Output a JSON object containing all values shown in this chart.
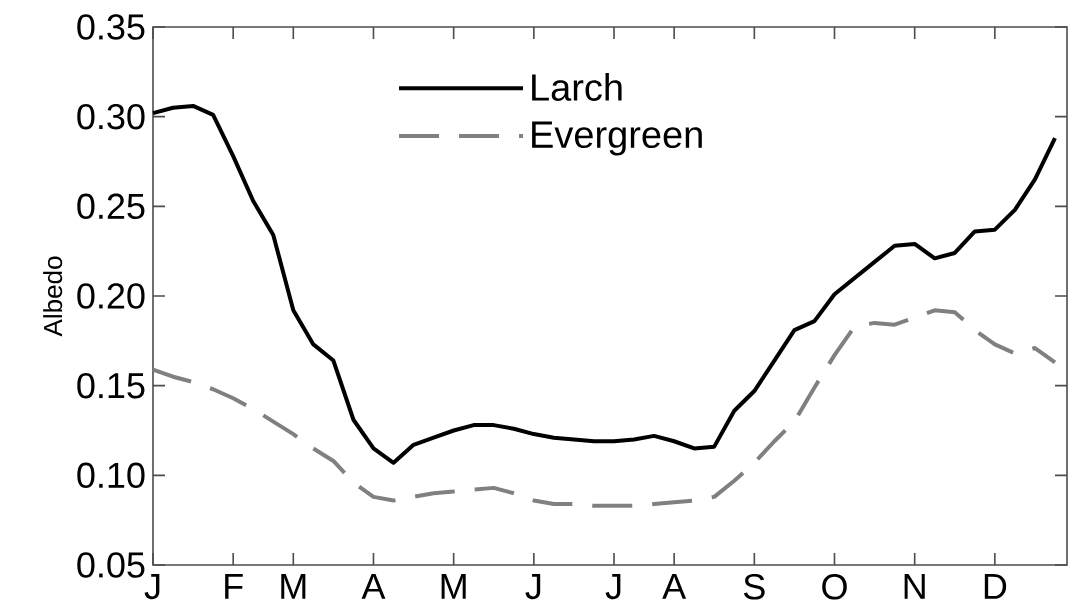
{
  "chart_data": {
    "type": "line",
    "ylabel": "Albedo",
    "categories": [
      "J",
      null,
      null,
      null,
      "F",
      null,
      null,
      "M",
      null,
      null,
      null,
      "A",
      null,
      null,
      null,
      "M",
      null,
      null,
      null,
      "J",
      null,
      null,
      null,
      "J",
      null,
      null,
      "A",
      null,
      null,
      null,
      "S",
      null,
      null,
      null,
      "O",
      null,
      null,
      null,
      "N",
      null,
      null,
      null,
      "D",
      null,
      null,
      null
    ],
    "ylim": [
      0.05,
      0.35
    ],
    "yticks": [
      {
        "value": 0.05,
        "label": "0.05"
      },
      {
        "value": 0.1,
        "label": "0.10"
      },
      {
        "value": 0.15,
        "label": "0.15"
      },
      {
        "value": 0.2,
        "label": "0.20"
      },
      {
        "value": 0.25,
        "label": "0.25"
      },
      {
        "value": 0.3,
        "label": "0.30"
      },
      {
        "value": 0.35,
        "label": "0.35"
      }
    ],
    "grid": false,
    "legend": "top",
    "marker": "none",
    "series": [
      {
        "name": "Larch",
        "color": "#000000",
        "line_style": "solid",
        "values": [
          0.302,
          0.305,
          0.306,
          0.301,
          0.278,
          0.253,
          0.234,
          0.192,
          0.173,
          0.164,
          0.131,
          0.115,
          0.107,
          0.117,
          0.121,
          0.125,
          0.128,
          0.128,
          0.126,
          0.123,
          0.121,
          0.12,
          0.119,
          0.119,
          0.12,
          0.122,
          0.119,
          0.115,
          0.116,
          0.136,
          0.147,
          0.164,
          0.181,
          0.186,
          0.201,
          0.21,
          0.219,
          0.228,
          0.229,
          0.221,
          0.224,
          0.236,
          0.237,
          0.248,
          0.265,
          0.288
        ]
      },
      {
        "name": "Evergreen",
        "color": "#808080",
        "line_style": "dashed",
        "values": [
          0.159,
          0.155,
          0.152,
          0.148,
          0.143,
          0.137,
          0.13,
          0.123,
          0.115,
          0.108,
          0.096,
          0.088,
          0.086,
          0.088,
          0.09,
          0.091,
          0.092,
          0.093,
          0.09,
          0.086,
          0.084,
          0.084,
          0.083,
          0.083,
          0.083,
          0.084,
          0.085,
          0.086,
          0.088,
          0.097,
          0.107,
          0.119,
          0.13,
          0.149,
          0.167,
          0.183,
          0.185,
          0.184,
          0.188,
          0.192,
          0.191,
          0.181,
          0.173,
          0.168,
          0.171,
          0.163
        ]
      }
    ]
  }
}
